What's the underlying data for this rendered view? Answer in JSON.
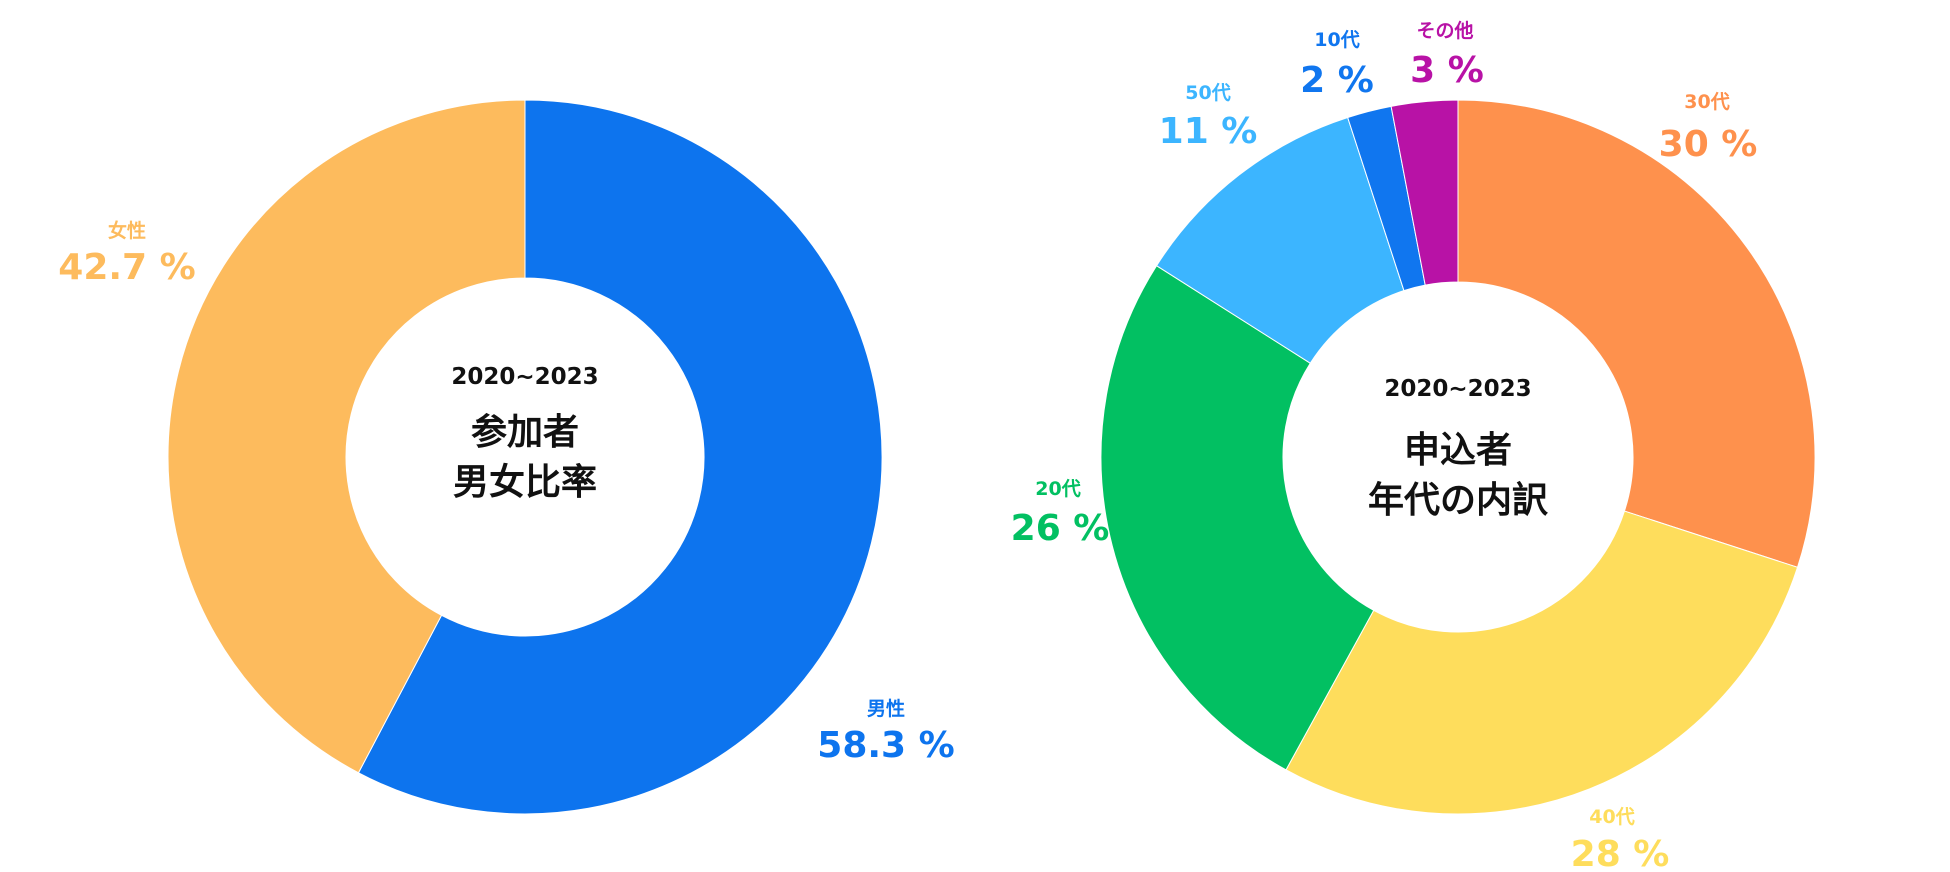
{
  "chart_data": [
    {
      "type": "pie",
      "center_text": {
        "years": "2020~2023",
        "title_lines": [
          "参加者",
          "男女比率"
        ]
      },
      "slices": [
        {
          "name": "男性",
          "value": 58.3,
          "value_label": "58.3 %",
          "color": "#0d74ee"
        },
        {
          "name": "女性",
          "value": 42.7,
          "value_label": "42.7 %",
          "color": "#fdbb5d"
        }
      ]
    },
    {
      "type": "pie",
      "center_text": {
        "years": "2020~2023",
        "title_lines": [
          "申込者",
          "年代の内訳"
        ]
      },
      "slices": [
        {
          "name": "30代",
          "value": 30,
          "value_label": "30 %",
          "color": "#fe914d"
        },
        {
          "name": "40代",
          "value": 28,
          "value_label": "28 %",
          "color": "#fedd5c"
        },
        {
          "name": "20代",
          "value": 26,
          "value_label": "26 %",
          "color": "#02c062"
        },
        {
          "name": "50代",
          "value": 11,
          "value_label": "11 %",
          "color": "#3cb5ff"
        },
        {
          "name": "10代",
          "value": 2,
          "value_label": "2 %",
          "color": "#1076ef"
        },
        {
          "name": "その他",
          "value": 3,
          "value_label": "3 %",
          "color": "#b812a6"
        }
      ]
    }
  ]
}
